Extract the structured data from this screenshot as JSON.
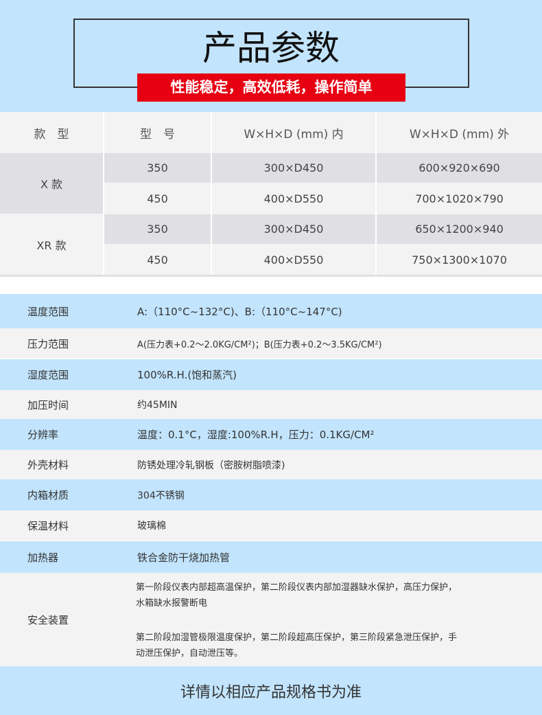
{
  "header": {
    "title": "产品参数",
    "banner": "性能稳定，高效低耗，操作简单"
  },
  "colors": {
    "header_bg": "#c2e4fd",
    "banner_bg": "#e60012",
    "table_gray": "#e0dfe3",
    "table_light": "#f3f3f3"
  },
  "model_table": {
    "headers": [
      "款　型",
      "型　号",
      "W×H×D (mm) 内",
      "W×H×D (mm) 外"
    ],
    "groups": [
      {
        "name": "X 款",
        "rows": [
          {
            "model": "350",
            "inner": "300×D450",
            "outer": "600×920×690"
          },
          {
            "model": "450",
            "inner": "400×D550",
            "outer": "700×1020×790"
          }
        ]
      },
      {
        "name": "XR 款",
        "rows": [
          {
            "model": "350",
            "inner": "300×D450",
            "outer": "650×1200×940"
          },
          {
            "model": "450",
            "inner": "400×D550",
            "outer": "750×1300×1070"
          }
        ]
      }
    ]
  },
  "specs": [
    {
      "label": "温度范围",
      "value": "A:（110°C~132°C)、B:（110°C~147°C)"
    },
    {
      "label": "压力范围",
      "value": "A(压力表+0.2～2.0KG/CM²)；B(压力表+0.2～3.5KG/CM²)"
    },
    {
      "label": "湿度范围",
      "value": "100%R.H.(饱和蒸汽)"
    },
    {
      "label": "加压时间",
      "value": "约45MIN"
    },
    {
      "label": "分辨率",
      "value": "温度：0.1°C，湿度:100%R.H，压力：0.1KG/CM²"
    },
    {
      "label": "外壳材料",
      "value": "防锈处理冷轧钢板（密胺树脂喷漆)"
    },
    {
      "label": "内箱材质",
      "value": "304不锈钢"
    },
    {
      "label": "保温材料",
      "value": "玻璃棉"
    },
    {
      "label": "加热器",
      "value": "铁合金防干烧加热管"
    },
    {
      "label": "安全装置",
      "lines": [
        "第一阶段仪表内部超高温保护，第二阶段仪表内部加湿器缺水保护，高压力保护，",
        "水箱缺水报警断电",
        "第二阶段加湿管极限温度保护，第二阶段超高压保护，第三阶段紧急泄压保护，手",
        "动泄压保护，自动泄压等。"
      ]
    }
  ],
  "footer": "详情以相应产品规格书为准"
}
